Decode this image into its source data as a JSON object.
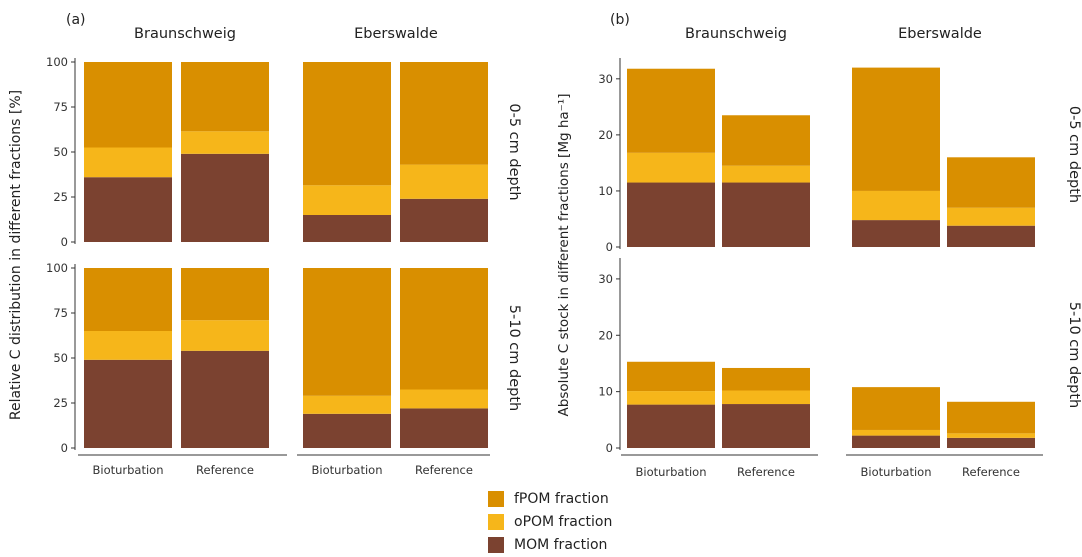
{
  "colors": {
    "fPOM": "#D98F00",
    "oPOM": "#F6B61A",
    "MOM": "#7B4230",
    "axis": "#333333"
  },
  "legend": [
    {
      "key": "fPOM",
      "label": "fPOM fraction",
      "color": "#D98F00"
    },
    {
      "key": "oPOM",
      "label": "oPOM fraction",
      "color": "#F6B61A"
    },
    {
      "key": "MOM",
      "label": "MOM fraction",
      "color": "#7B4230"
    }
  ],
  "chart_data": [
    {
      "panel": "(a)",
      "type": "bar",
      "stacked": true,
      "ylabel": "Relative C distribution in different fractions [%]",
      "ylim": [
        0,
        100
      ],
      "yticks": [
        0,
        25,
        50,
        75,
        100
      ],
      "categories": [
        "Bioturbation",
        "Reference"
      ],
      "sites": [
        "Braunschweig",
        "Eberswalde"
      ],
      "depths": [
        "0-5 cm depth",
        "5-10 cm depth"
      ],
      "facets": [
        {
          "site": "Braunschweig",
          "depth": "0-5 cm depth",
          "series": [
            {
              "name": "MOM fraction",
              "values": [
                36,
                49
              ]
            },
            {
              "name": "oPOM fraction",
              "values": [
                16.5,
                12.5
              ]
            },
            {
              "name": "fPOM fraction",
              "values": [
                47.5,
                38.5
              ]
            }
          ]
        },
        {
          "site": "Eberswalde",
          "depth": "0-5 cm depth",
          "series": [
            {
              "name": "MOM fraction",
              "values": [
                15,
                24
              ]
            },
            {
              "name": "oPOM fraction",
              "values": [
                16.5,
                19
              ]
            },
            {
              "name": "fPOM fraction",
              "values": [
                68.5,
                57
              ]
            }
          ]
        },
        {
          "site": "Braunschweig",
          "depth": "5-10 cm depth",
          "series": [
            {
              "name": "MOM fraction",
              "values": [
                49,
                54
              ]
            },
            {
              "name": "oPOM fraction",
              "values": [
                16,
                17
              ]
            },
            {
              "name": "fPOM fraction",
              "values": [
                35,
                29
              ]
            }
          ]
        },
        {
          "site": "Eberswalde",
          "depth": "5-10 cm depth",
          "series": [
            {
              "name": "MOM fraction",
              "values": [
                19,
                22
              ]
            },
            {
              "name": "oPOM fraction",
              "values": [
                10,
                10.5
              ]
            },
            {
              "name": "fPOM fraction",
              "values": [
                71,
                67.5
              ]
            }
          ]
        }
      ]
    },
    {
      "panel": "(b)",
      "type": "bar",
      "stacked": true,
      "ylabel": "Absolute C stock in different fractions [Mg ha⁻¹]",
      "ylim": [
        0,
        33
      ],
      "yticks": [
        0,
        10,
        20,
        30
      ],
      "categories": [
        "Bioturbation",
        "Reference"
      ],
      "sites": [
        "Braunschweig",
        "Eberswalde"
      ],
      "depths": [
        "0-5 cm depth",
        "5-10 cm depth"
      ],
      "facets": [
        {
          "site": "Braunschweig",
          "depth": "0-5 cm depth",
          "series": [
            {
              "name": "MOM fraction",
              "values": [
                11.5,
                11.5
              ]
            },
            {
              "name": "oPOM fraction",
              "values": [
                5.3,
                3
              ]
            },
            {
              "name": "fPOM fraction",
              "values": [
                15,
                9
              ]
            }
          ]
        },
        {
          "site": "Eberswalde",
          "depth": "0-5 cm depth",
          "series": [
            {
              "name": "MOM fraction",
              "values": [
                4.8,
                3.8
              ]
            },
            {
              "name": "oPOM fraction",
              "values": [
                5.2,
                3.2
              ]
            },
            {
              "name": "fPOM fraction",
              "values": [
                22,
                9
              ]
            }
          ]
        },
        {
          "site": "Braunschweig",
          "depth": "5-10 cm depth",
          "series": [
            {
              "name": "MOM fraction",
              "values": [
                7.7,
                7.8
              ]
            },
            {
              "name": "oPOM fraction",
              "values": [
                2.4,
                2.4
              ]
            },
            {
              "name": "fPOM fraction",
              "values": [
                5.2,
                4
              ]
            }
          ]
        },
        {
          "site": "Eberswalde",
          "depth": "5-10 cm depth",
          "series": [
            {
              "name": "MOM fraction",
              "values": [
                2.2,
                1.8
              ]
            },
            {
              "name": "oPOM fraction",
              "values": [
                1,
                0.8
              ]
            },
            {
              "name": "fPOM fraction",
              "values": [
                7.6,
                5.6
              ]
            }
          ]
        }
      ]
    }
  ]
}
